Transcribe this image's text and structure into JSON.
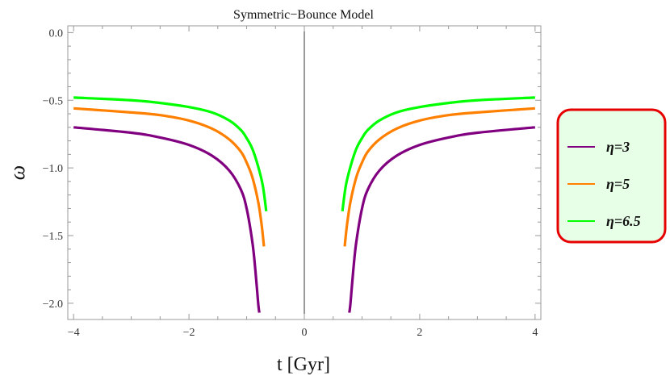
{
  "chart_data": {
    "type": "line",
    "title": "Symmetric−Bounce Model",
    "xlabel": "t [Gyr]",
    "ylabel": "ω",
    "xlim": [
      -4.1,
      4.1
    ],
    "ylim": [
      -2.12,
      0.05
    ],
    "x_ticks": [
      -4,
      -2,
      0,
      2,
      4
    ],
    "x_tick_labels": [
      "−4",
      "−2",
      "0",
      "2",
      "4"
    ],
    "y_ticks": [
      0.0,
      -0.5,
      -1.0,
      -1.5,
      -2.0
    ],
    "y_tick_labels": [
      "0.0",
      "−0.5",
      "−1.0",
      "−1.5",
      "−2.0"
    ],
    "grid": false,
    "legend_position": "right",
    "legend_style": {
      "background": "#e6ffe6",
      "border": "#e60000"
    },
    "series": [
      {
        "name": "η=3",
        "color": "#800080",
        "left": {
          "x": [
            -4.0,
            -3.0,
            -2.5,
            -2.0,
            -1.6,
            -1.3,
            -1.1,
            -1.0,
            -0.9,
            -0.85,
            -0.8,
            -0.78
          ],
          "y": [
            -0.7,
            -0.74,
            -0.775,
            -0.83,
            -0.91,
            -1.02,
            -1.16,
            -1.3,
            -1.55,
            -1.75,
            -2.0,
            -2.07
          ]
        },
        "right": {
          "x": [
            0.78,
            0.8,
            0.85,
            0.9,
            1.0,
            1.1,
            1.3,
            1.6,
            2.0,
            2.5,
            3.0,
            4.0
          ],
          "y": [
            -2.07,
            -2.0,
            -1.75,
            -1.55,
            -1.3,
            -1.16,
            -1.02,
            -0.91,
            -0.83,
            -0.775,
            -0.74,
            -0.7
          ]
        }
      },
      {
        "name": "η=5",
        "color": "#ff8000",
        "left": {
          "x": [
            -4.0,
            -3.0,
            -2.5,
            -2.0,
            -1.6,
            -1.3,
            -1.1,
            -1.0,
            -0.9,
            -0.8,
            -0.74,
            -0.7
          ],
          "y": [
            -0.56,
            -0.59,
            -0.61,
            -0.65,
            -0.71,
            -0.79,
            -0.88,
            -0.96,
            -1.07,
            -1.25,
            -1.42,
            -1.58
          ]
        },
        "right": {
          "x": [
            0.7,
            0.74,
            0.8,
            0.9,
            1.0,
            1.1,
            1.3,
            1.6,
            2.0,
            2.5,
            3.0,
            4.0
          ],
          "y": [
            -1.58,
            -1.42,
            -1.25,
            -1.07,
            -0.96,
            -0.88,
            -0.79,
            -0.71,
            -0.65,
            -0.61,
            -0.59,
            -0.56
          ]
        }
      },
      {
        "name": "η=6.5",
        "color": "#00ff00",
        "left": {
          "x": [
            -4.0,
            -3.0,
            -2.5,
            -2.0,
            -1.6,
            -1.3,
            -1.1,
            -1.0,
            -0.9,
            -0.8,
            -0.72,
            -0.66
          ],
          "y": [
            -0.48,
            -0.5,
            -0.52,
            -0.55,
            -0.59,
            -0.65,
            -0.72,
            -0.78,
            -0.86,
            -0.99,
            -1.13,
            -1.32
          ]
        },
        "right": {
          "x": [
            0.66,
            0.72,
            0.8,
            0.9,
            1.0,
            1.1,
            1.3,
            1.6,
            2.0,
            2.5,
            3.0,
            4.0
          ],
          "y": [
            -1.32,
            -1.13,
            -0.99,
            -0.86,
            -0.78,
            -0.72,
            -0.65,
            -0.59,
            -0.55,
            -0.52,
            -0.5,
            -0.48
          ]
        }
      }
    ]
  }
}
